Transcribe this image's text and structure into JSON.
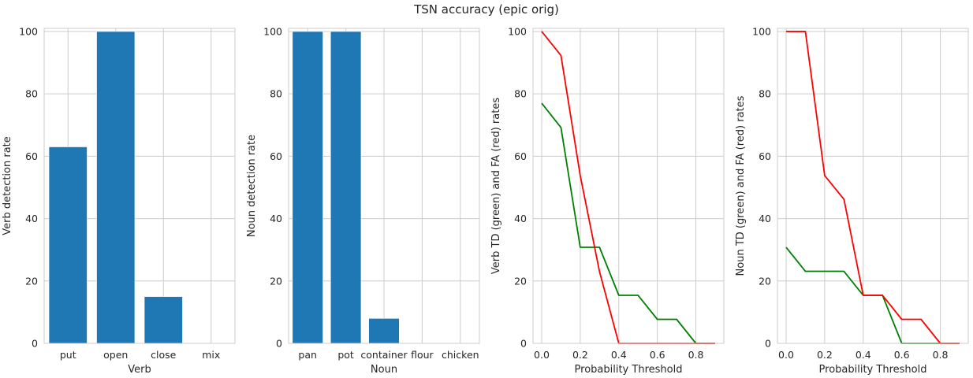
{
  "title": "TSN accuracy (epic orig)",
  "chart_data": [
    {
      "type": "bar",
      "categories": [
        "put",
        "open",
        "close",
        "mix"
      ],
      "values": [
        63,
        100,
        15,
        0
      ],
      "xlabel": "Verb",
      "ylabel": "Verb detection rate",
      "ylim": [
        0,
        101
      ],
      "yticks": [
        0,
        20,
        40,
        60,
        80,
        100
      ],
      "grid": true,
      "bar_color": "#1f77b4"
    },
    {
      "type": "bar",
      "categories": [
        "pan",
        "pot",
        "container",
        "flour",
        "chicken"
      ],
      "values": [
        100,
        100,
        8,
        0,
        0
      ],
      "xlabel": "Noun",
      "ylabel": "Noun detection rate",
      "ylim": [
        0,
        101
      ],
      "yticks": [
        0,
        20,
        40,
        60,
        80,
        100
      ],
      "grid": true,
      "bar_color": "#1f77b4"
    },
    {
      "type": "line",
      "x": [
        0.0,
        0.1,
        0.2,
        0.3,
        0.4,
        0.5,
        0.6,
        0.7,
        0.8,
        0.9
      ],
      "series": [
        {
          "color": "#008000",
          "values": [
            77,
            69.2,
            30.8,
            30.8,
            15.4,
            15.4,
            7.7,
            7.7,
            0,
            0
          ]
        },
        {
          "color": "#ff0000",
          "values": [
            100,
            92.3,
            53.8,
            23,
            0,
            0,
            0,
            0,
            0,
            0
          ]
        }
      ],
      "xlabel": "Probability Threshold",
      "ylabel": "Verb TD (green) and FA (red) rates",
      "xlim": [
        -0.045,
        0.945
      ],
      "ylim": [
        0,
        101
      ],
      "xticks": [
        "0.0",
        "0.2",
        "0.4",
        "0.6",
        "0.8"
      ],
      "yticks": [
        0,
        20,
        40,
        60,
        80,
        100
      ],
      "grid": true
    },
    {
      "type": "line",
      "x": [
        0.0,
        0.1,
        0.2,
        0.3,
        0.4,
        0.5,
        0.6,
        0.7,
        0.8,
        0.9
      ],
      "series": [
        {
          "color": "#008000",
          "values": [
            30.8,
            23.1,
            23.1,
            23.1,
            15.4,
            15.4,
            0,
            0,
            0,
            0
          ]
        },
        {
          "color": "#ff0000",
          "values": [
            100,
            100,
            53.8,
            46.2,
            15.4,
            15.4,
            7.7,
            7.7,
            0,
            0
          ]
        }
      ],
      "xlabel": "Probability Threshold",
      "ylabel": "Noun TD (green) and FA (red) rates",
      "xlim": [
        -0.045,
        0.945
      ],
      "ylim": [
        0,
        101
      ],
      "xticks": [
        "0.0",
        "0.2",
        "0.4",
        "0.6",
        "0.8"
      ],
      "yticks": [
        0,
        20,
        40,
        60,
        80,
        100
      ],
      "grid": true
    }
  ]
}
